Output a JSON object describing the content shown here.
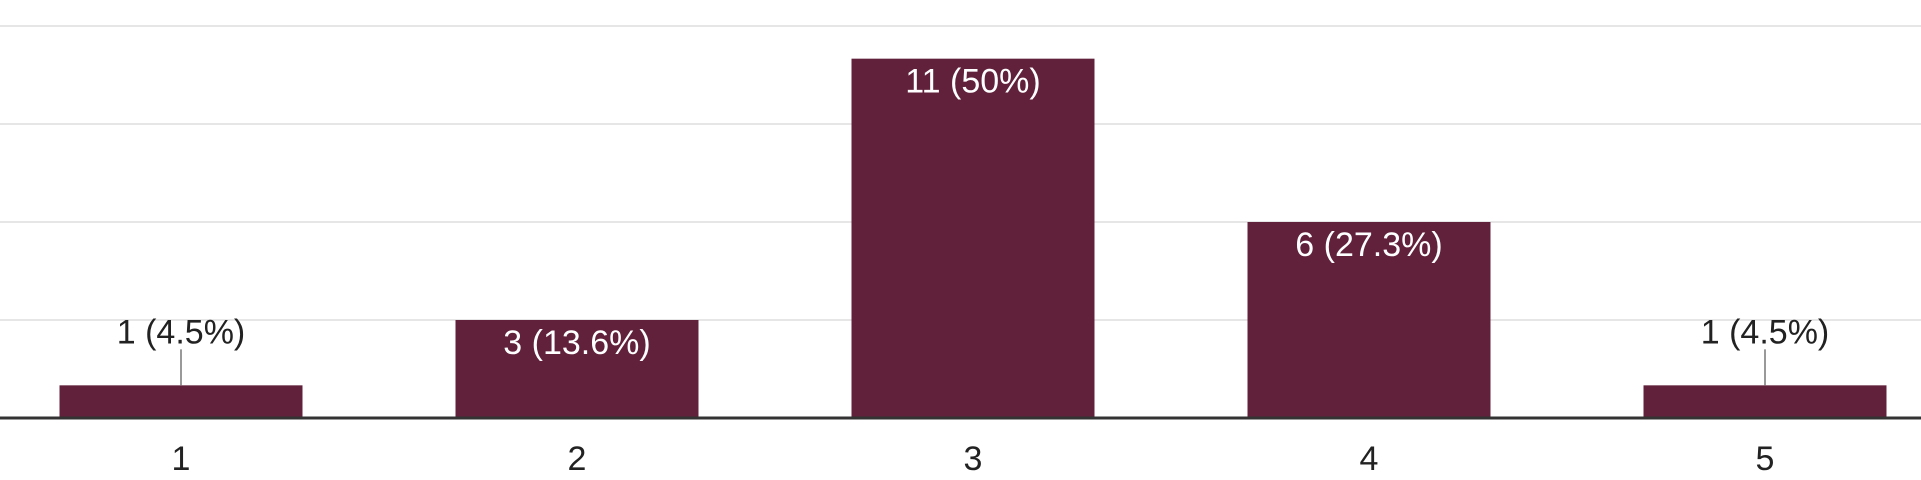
{
  "chart_data": {
    "type": "bar",
    "categories": [
      "1",
      "2",
      "3",
      "4",
      "5"
    ],
    "values": [
      1,
      3,
      11,
      6,
      1
    ],
    "data_labels": [
      "1 (4.5%)",
      "3 (13.6%)",
      "11 (50%)",
      "6 (27.3%)",
      "1 (4.5%)"
    ],
    "ylim": [
      0,
      12
    ],
    "grid": true,
    "bar_color": "#61213b",
    "title": "",
    "xlabel": "",
    "ylabel": ""
  }
}
